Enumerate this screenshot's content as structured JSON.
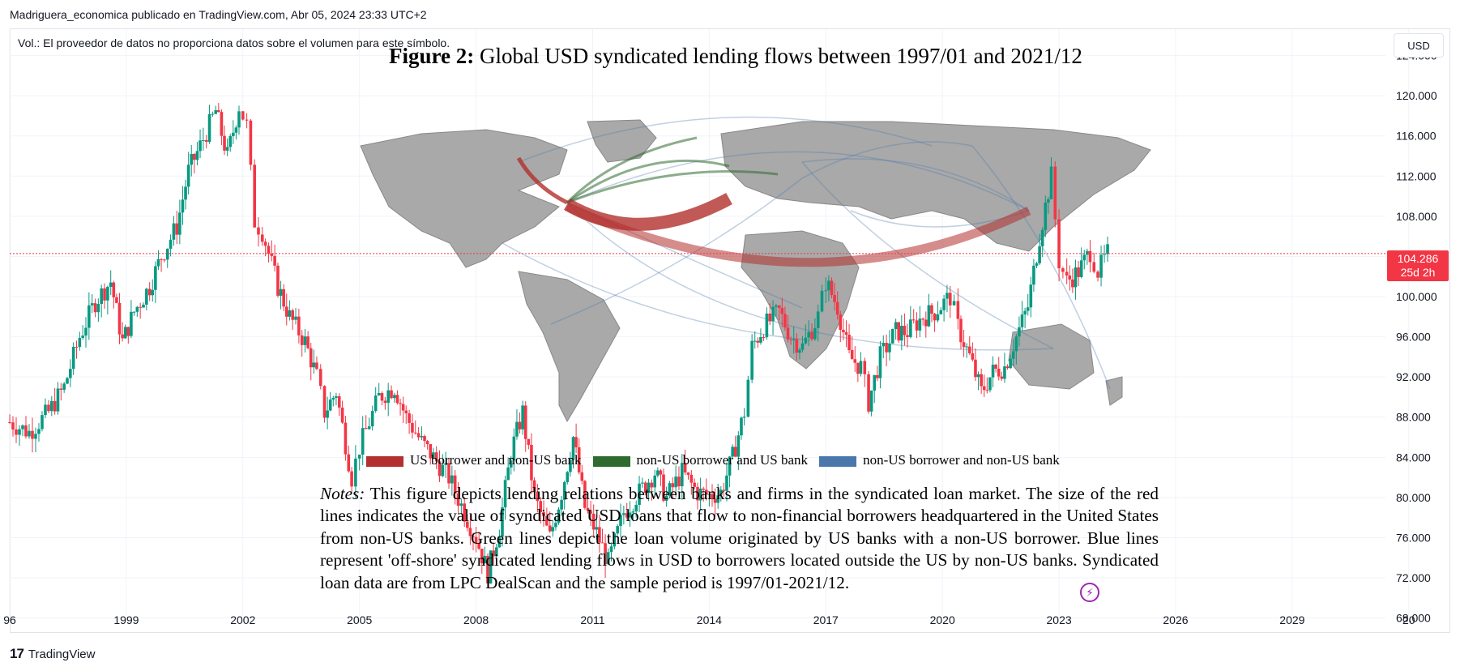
{
  "header": {
    "text": "Madriguera_economica publicado en TradingView.com, Abr 05, 2024 23:33 UTC+2"
  },
  "volume_note": "Vol.: El proveedor de datos no proporciona datos sobre el volumen para este símbolo.",
  "currency_button": "USD",
  "last_price": {
    "value": "104.286",
    "countdown": "25d 2h",
    "color": "#f23645"
  },
  "branding": {
    "logo_mark": "17",
    "name": "TradingView"
  },
  "overlay": {
    "title_bold": "Figure 2:",
    "title_rest": " Global USD syndicated lending flows between 1997/01 and 2021/12",
    "legend": [
      {
        "label": "US borrower and non-US bank",
        "color": "#b2302d"
      },
      {
        "label": "non-US borrower and US bank",
        "color": "#2f6a2f"
      },
      {
        "label": "non-US borrower and non-US bank",
        "color": "#4a78ad"
      }
    ],
    "notes_label": "Notes:",
    "notes_text": " This figure depicts lending relations between banks and firms in the syndicated loan market. The size of the red lines indicates the value of syndicated USD loans that flow to non-financial borrowers headquartered in the United States from non-US banks. Green lines depict the loan volume originated by US banks with a non-US borrower. Blue lines represent 'off-shore' syndicated lending flows in USD to borrowers located outside the US by non-US banks. Syndicated loan data are from LPC DealScan and the sample period is 1997/01-2021/12."
  },
  "chart_data": {
    "type": "candlestick",
    "title": "",
    "currency": "USD",
    "colors": {
      "up": "#089981",
      "down": "#f23645"
    },
    "x_ticks": [
      "96",
      "1999",
      "2002",
      "2005",
      "2008",
      "2011",
      "2014",
      "2017",
      "2020",
      "2023",
      "2026",
      "2029",
      "20"
    ],
    "y_ticks": [
      "124.000",
      "120.000",
      "116.000",
      "112.000",
      "108.000",
      "104.000",
      "100.000",
      "96.000",
      "92.000",
      "88.000",
      "84.000",
      "80.000",
      "76.000",
      "72.000",
      "68.000"
    ],
    "ylim": [
      67,
      125.5
    ],
    "x_range": [
      1996.0,
      2031.4
    ],
    "last_price": 104.286,
    "series_points": [
      [
        1996.0,
        87.5
      ],
      [
        1996.5,
        86.5
      ],
      [
        1997.0,
        88.5
      ],
      [
        1997.4,
        91
      ],
      [
        1997.8,
        96
      ],
      [
        1998.2,
        99.5
      ],
      [
        1998.6,
        101.5
      ],
      [
        1998.9,
        95.5
      ],
      [
        1999.2,
        98.5
      ],
      [
        1999.6,
        101
      ],
      [
        1999.9,
        104
      ],
      [
        2000.3,
        107
      ],
      [
        2000.6,
        112.5
      ],
      [
        2000.9,
        115
      ],
      [
        2001.3,
        118.5
      ],
      [
        2001.6,
        114
      ],
      [
        2001.9,
        119
      ],
      [
        2002.1,
        117
      ],
      [
        2002.3,
        107.5
      ],
      [
        2002.5,
        106.5
      ],
      [
        2002.9,
        101
      ],
      [
        2003.2,
        98
      ],
      [
        2003.6,
        95.5
      ],
      [
        2003.9,
        92
      ],
      [
        2004.1,
        88.5
      ],
      [
        2004.4,
        90.5
      ],
      [
        2004.8,
        82
      ],
      [
        2005.0,
        85
      ],
      [
        2005.5,
        90
      ],
      [
        2005.9,
        91
      ],
      [
        2006.2,
        88
      ],
      [
        2006.6,
        85.5
      ],
      [
        2006.9,
        84
      ],
      [
        2007.3,
        82
      ],
      [
        2007.7,
        78.5
      ],
      [
        2008.0,
        76
      ],
      [
        2008.3,
        72.5
      ],
      [
        2008.6,
        77
      ],
      [
        2008.9,
        84.5
      ],
      [
        2009.2,
        88.5
      ],
      [
        2009.5,
        80
      ],
      [
        2009.9,
        76
      ],
      [
        2010.2,
        80.5
      ],
      [
        2010.5,
        86
      ],
      [
        2010.8,
        79
      ],
      [
        2011.1,
        76.5
      ],
      [
        2011.4,
        73.5
      ],
      [
        2011.8,
        78.5
      ],
      [
        2012.2,
        80.5
      ],
      [
        2012.6,
        82.5
      ],
      [
        2012.9,
        80
      ],
      [
        2013.3,
        82.5
      ],
      [
        2013.7,
        80.5
      ],
      [
        2014.0,
        80.2
      ],
      [
        2014.3,
        80.5
      ],
      [
        2014.6,
        84
      ],
      [
        2014.9,
        88.5
      ],
      [
        2015.1,
        95
      ],
      [
        2015.4,
        97
      ],
      [
        2015.8,
        98.5
      ],
      [
        2016.1,
        96
      ],
      [
        2016.4,
        95
      ],
      [
        2016.8,
        98
      ],
      [
        2017.0,
        101.5
      ],
      [
        2017.3,
        99
      ],
      [
        2017.6,
        94
      ],
      [
        2017.9,
        93
      ],
      [
        2018.1,
        89.5
      ],
      [
        2018.4,
        94
      ],
      [
        2018.8,
        96.5
      ],
      [
        2019.1,
        96.5
      ],
      [
        2019.5,
        98
      ],
      [
        2019.8,
        98.5
      ],
      [
        2020.2,
        100
      ],
      [
        2020.4,
        97
      ],
      [
        2020.7,
        94
      ],
      [
        2021.0,
        90.5
      ],
      [
        2021.3,
        92.5
      ],
      [
        2021.6,
        93
      ],
      [
        2021.9,
        96
      ],
      [
        2022.2,
        99
      ],
      [
        2022.5,
        106
      ],
      [
        2022.8,
        112
      ],
      [
        2023.0,
        103.5
      ],
      [
        2023.2,
        101.5
      ],
      [
        2023.5,
        102.5
      ],
      [
        2023.8,
        104.5
      ],
      [
        2024.0,
        102.5
      ],
      [
        2024.25,
        104.286
      ]
    ]
  }
}
